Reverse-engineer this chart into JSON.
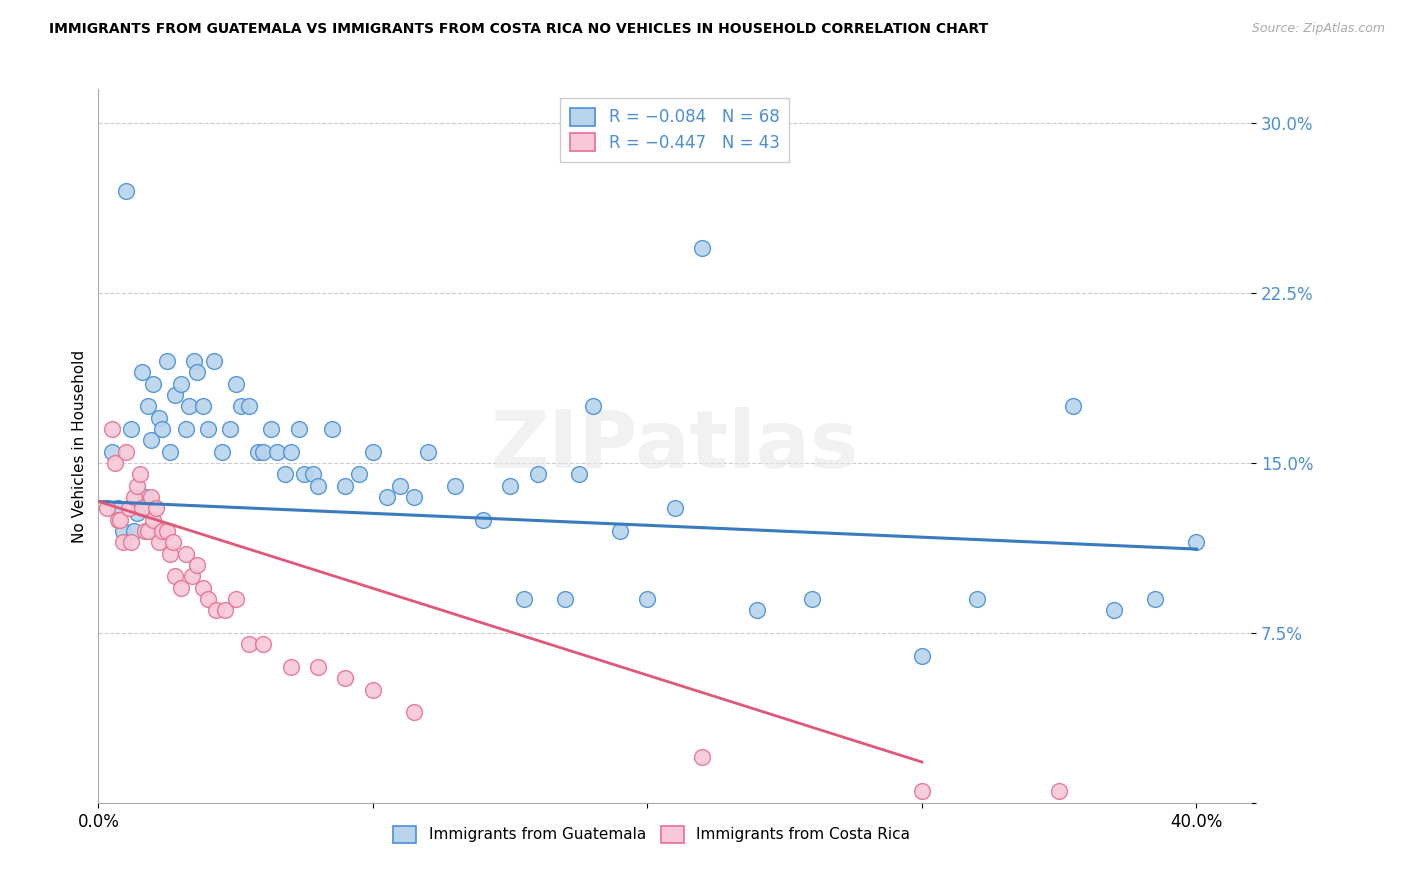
{
  "title": "IMMIGRANTS FROM GUATEMALA VS IMMIGRANTS FROM COSTA RICA NO VEHICLES IN HOUSEHOLD CORRELATION CHART",
  "source": "Source: ZipAtlas.com",
  "ylabel": "No Vehicles in Household",
  "yticks": [
    0.0,
    0.075,
    0.15,
    0.225,
    0.3
  ],
  "ytick_labels": [
    "",
    "7.5%",
    "15.0%",
    "22.5%",
    "30.0%"
  ],
  "xticks": [
    0.0,
    0.1,
    0.2,
    0.3,
    0.4
  ],
  "xtick_labels": [
    "0.0%",
    "",
    "",
    "",
    "40.0%"
  ],
  "xlim": [
    0.0,
    0.42
  ],
  "ylim": [
    0.0,
    0.315
  ],
  "legend_label1": "R = −0.084   N = 68",
  "legend_label2": "R = −0.447   N = 43",
  "legend_label_blue": "Immigrants from Guatemala",
  "legend_label_pink": "Immigrants from Costa Rica",
  "blue_fill": "#b8d4ec",
  "blue_edge": "#4a8fd4",
  "pink_fill": "#f8c8d8",
  "pink_edge": "#e87090",
  "blue_line": "#3a7abf",
  "pink_line": "#e05878",
  "watermark": "ZIPatlas",
  "guatemala_x": [
    0.005,
    0.007,
    0.009,
    0.01,
    0.012,
    0.013,
    0.014,
    0.016,
    0.017,
    0.018,
    0.019,
    0.02,
    0.022,
    0.023,
    0.025,
    0.026,
    0.028,
    0.03,
    0.032,
    0.033,
    0.035,
    0.036,
    0.038,
    0.04,
    0.042,
    0.045,
    0.048,
    0.05,
    0.052,
    0.055,
    0.058,
    0.06,
    0.063,
    0.065,
    0.068,
    0.07,
    0.073,
    0.075,
    0.078,
    0.08,
    0.085,
    0.09,
    0.095,
    0.1,
    0.105,
    0.11,
    0.115,
    0.12,
    0.13,
    0.14,
    0.15,
    0.155,
    0.16,
    0.17,
    0.175,
    0.18,
    0.19,
    0.2,
    0.21,
    0.22,
    0.24,
    0.26,
    0.3,
    0.32,
    0.355,
    0.37,
    0.385,
    0.4
  ],
  "guatemala_y": [
    0.155,
    0.13,
    0.12,
    0.27,
    0.165,
    0.12,
    0.128,
    0.19,
    0.135,
    0.175,
    0.16,
    0.185,
    0.17,
    0.165,
    0.195,
    0.155,
    0.18,
    0.185,
    0.165,
    0.175,
    0.195,
    0.19,
    0.175,
    0.165,
    0.195,
    0.155,
    0.165,
    0.185,
    0.175,
    0.175,
    0.155,
    0.155,
    0.165,
    0.155,
    0.145,
    0.155,
    0.165,
    0.145,
    0.145,
    0.14,
    0.165,
    0.14,
    0.145,
    0.155,
    0.135,
    0.14,
    0.135,
    0.155,
    0.14,
    0.125,
    0.14,
    0.09,
    0.145,
    0.09,
    0.145,
    0.175,
    0.12,
    0.09,
    0.13,
    0.245,
    0.085,
    0.09,
    0.065,
    0.09,
    0.175,
    0.085,
    0.09,
    0.115
  ],
  "costarica_x": [
    0.003,
    0.005,
    0.006,
    0.007,
    0.008,
    0.009,
    0.01,
    0.011,
    0.012,
    0.013,
    0.014,
    0.015,
    0.016,
    0.017,
    0.018,
    0.019,
    0.02,
    0.021,
    0.022,
    0.023,
    0.025,
    0.026,
    0.027,
    0.028,
    0.03,
    0.032,
    0.034,
    0.036,
    0.038,
    0.04,
    0.043,
    0.046,
    0.05,
    0.055,
    0.06,
    0.07,
    0.08,
    0.09,
    0.1,
    0.115,
    0.22,
    0.3,
    0.35
  ],
  "costarica_y": [
    0.13,
    0.165,
    0.15,
    0.125,
    0.125,
    0.115,
    0.155,
    0.13,
    0.115,
    0.135,
    0.14,
    0.145,
    0.13,
    0.12,
    0.12,
    0.135,
    0.125,
    0.13,
    0.115,
    0.12,
    0.12,
    0.11,
    0.115,
    0.1,
    0.095,
    0.11,
    0.1,
    0.105,
    0.095,
    0.09,
    0.085,
    0.085,
    0.09,
    0.07,
    0.07,
    0.06,
    0.06,
    0.055,
    0.05,
    0.04,
    0.02,
    0.005,
    0.005
  ],
  "blue_trend_x": [
    0.0,
    0.4
  ],
  "blue_trend_y": [
    0.133,
    0.112
  ],
  "pink_trend_x": [
    0.0,
    0.3
  ],
  "pink_trend_y": [
    0.133,
    0.018
  ]
}
